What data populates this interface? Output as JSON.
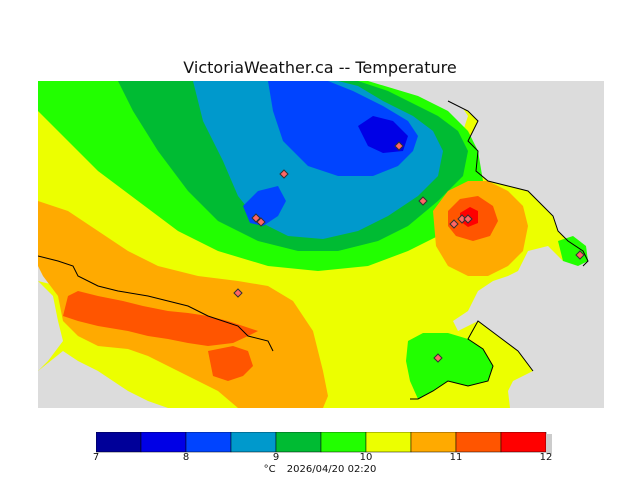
{
  "header": {
    "title": "VictoriaWeather.ca -- Temperature"
  },
  "colorbar": {
    "min": 7,
    "max": 12,
    "step": 0.5,
    "colors": [
      "#000099",
      "#0000e6",
      "#0044ff",
      "#0099cc",
      "#00bb33",
      "#22ff00",
      "#ecff00",
      "#ffaa00",
      "#ff5500",
      "#ff0000"
    ],
    "ticks": [
      "7",
      "8",
      "9",
      "10",
      "11",
      "12"
    ],
    "unit": "°C",
    "timestamp": "2026/04/20 02:20"
  },
  "map": {
    "land_color": "#dcdcdc",
    "station_count": 10
  }
}
